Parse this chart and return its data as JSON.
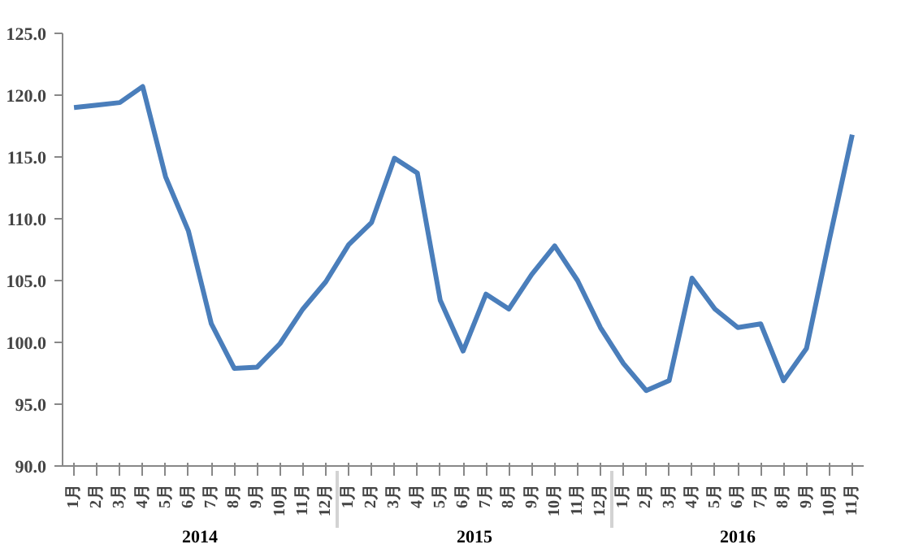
{
  "chart_data": {
    "type": "line",
    "categories": [
      "1月",
      "2月",
      "3月",
      "4月",
      "5月",
      "6月",
      "7月",
      "8月",
      "9月",
      "10月",
      "11月",
      "12月",
      "1月",
      "2月",
      "3月",
      "4月",
      "5月",
      "6月",
      "7月",
      "8月",
      "9月",
      "10月",
      "11月",
      "12月",
      "1月",
      "2月",
      "3月",
      "4月",
      "5月",
      "6月",
      "7月",
      "8月",
      "9月",
      "10月",
      "11月"
    ],
    "annotations": [
      "2014",
      "2015",
      "2016"
    ],
    "series": [
      {
        "color": "#4a7ebb",
        "values": [
          119.0,
          119.2,
          119.4,
          120.7,
          113.4,
          109.0,
          101.5,
          97.9,
          98.0,
          99.9,
          102.7,
          104.9,
          107.9,
          109.7,
          114.9,
          113.7,
          103.4,
          99.3,
          103.9,
          102.7,
          105.5,
          107.8,
          105.0,
          101.2,
          98.3,
          96.1,
          96.9,
          105.2,
          102.7,
          101.2,
          101.5,
          96.9,
          99.5,
          108.3,
          116.8
        ]
      }
    ],
    "ylim": [
      90,
      125
    ],
    "yticks": [
      {
        "value": 90,
        "label": "90.0"
      },
      {
        "value": 95,
        "label": "95.0"
      },
      {
        "value": 100,
        "label": "100.0"
      },
      {
        "value": 105,
        "label": "105.0"
      },
      {
        "value": 110,
        "label": "110.0"
      },
      {
        "value": 115,
        "label": "115.0"
      },
      {
        "value": 120,
        "label": "120.0"
      },
      {
        "value": 125,
        "label": "125.0"
      }
    ],
    "grid": false,
    "marker": "none",
    "line_style": "solid"
  }
}
